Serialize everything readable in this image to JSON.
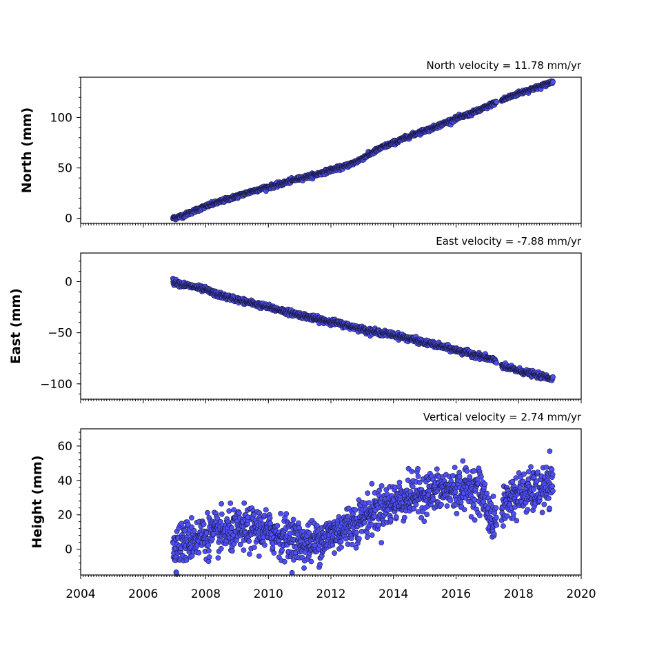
{
  "chart_data": [
    {
      "type": "scatter",
      "title": "North velocity = 11.78 mm/yr",
      "ylabel": "North (mm)",
      "xlim": [
        2004,
        2020
      ],
      "ylim": [
        -5,
        140
      ],
      "y_ticks": [
        0,
        50,
        100
      ],
      "y_tick_labels": [
        "0",
        "50",
        "100"
      ],
      "marker_color": "#4f4ff7",
      "series": [
        {
          "x": [
            2006.95,
            2007.3,
            2007.6,
            2008.0,
            2008.4,
            2008.8,
            2009.2,
            2009.6,
            2010.0,
            2010.4,
            2010.8,
            2011.2,
            2011.6,
            2012.0,
            2012.4,
            2012.8,
            2013.2,
            2013.6,
            2014.0,
            2014.4,
            2014.8,
            2015.2,
            2015.6,
            2016.0,
            2016.4,
            2016.8,
            2017.2,
            2017.6,
            2018.0,
            2018.4,
            2018.8,
            2019.1
          ],
          "y": [
            0,
            3,
            7,
            12,
            16,
            20,
            24,
            28,
            31,
            34,
            38,
            41,
            44,
            48,
            51,
            56,
            63,
            70,
            75,
            80,
            85,
            89,
            94,
            99,
            103,
            108,
            114,
            119,
            124,
            128,
            132,
            136
          ]
        }
      ]
    },
    {
      "type": "scatter",
      "title": "East velocity = -7.88 mm/yr",
      "ylabel": "East (mm)",
      "xlim": [
        2004,
        2020
      ],
      "ylim": [
        -115,
        28
      ],
      "y_ticks": [
        0,
        -50,
        -100
      ],
      "y_tick_labels": [
        "0",
        "−50",
        "−100"
      ],
      "marker_color": "#4f4ff7",
      "series": [
        {
          "x": [
            2006.95,
            2007.3,
            2007.6,
            2008.0,
            2008.4,
            2008.8,
            2009.2,
            2009.6,
            2010.0,
            2010.4,
            2010.8,
            2011.2,
            2011.6,
            2012.0,
            2012.4,
            2012.8,
            2013.2,
            2013.6,
            2014.0,
            2014.4,
            2014.8,
            2015.2,
            2015.6,
            2016.0,
            2016.4,
            2016.8,
            2017.2,
            2017.6,
            2018.0,
            2018.4,
            2018.8,
            2019.1
          ],
          "y": [
            0,
            -3,
            -5,
            -8,
            -13,
            -16,
            -19,
            -22,
            -25,
            -28,
            -31,
            -34,
            -37,
            -39,
            -42,
            -45,
            -48,
            -50,
            -52,
            -55,
            -58,
            -61,
            -64,
            -67,
            -70,
            -73,
            -77,
            -84,
            -87,
            -90,
            -93,
            -95
          ]
        }
      ]
    },
    {
      "type": "scatter",
      "title": "Vertical velocity = 2.74 mm/yr",
      "ylabel": "Height (mm)",
      "xlim": [
        2004,
        2020
      ],
      "ylim": [
        -15,
        70
      ],
      "y_ticks": [
        0,
        20,
        40,
        60
      ],
      "y_tick_labels": [
        "0",
        "20",
        "40",
        "60"
      ],
      "x_ticks": [
        2004,
        2006,
        2008,
        2010,
        2012,
        2014,
        2016,
        2018,
        2020
      ],
      "x_tick_labels": [
        "2004",
        "2006",
        "2008",
        "2010",
        "2012",
        "2014",
        "2016",
        "2018",
        "2020"
      ],
      "marker_color": "#4f4ff7",
      "series": [
        {
          "x": [
            2006.95,
            2007.3,
            2007.6,
            2008.0,
            2008.4,
            2008.8,
            2009.2,
            2009.6,
            2010.0,
            2010.4,
            2010.8,
            2011.2,
            2011.6,
            2012.0,
            2012.4,
            2012.8,
            2013.2,
            2013.6,
            2014.0,
            2014.4,
            2014.8,
            2015.2,
            2015.6,
            2016.0,
            2016.4,
            2016.8,
            2017.2,
            2017.6,
            2018.0,
            2018.4,
            2018.8,
            2019.1
          ],
          "y": [
            2,
            4,
            6,
            8,
            9,
            10,
            11,
            12,
            10,
            8,
            6,
            3,
            5,
            8,
            12,
            16,
            20,
            24,
            27,
            30,
            32,
            33,
            34,
            35,
            36,
            34,
            14,
            28,
            32,
            33,
            35,
            36
          ]
        }
      ]
    }
  ]
}
